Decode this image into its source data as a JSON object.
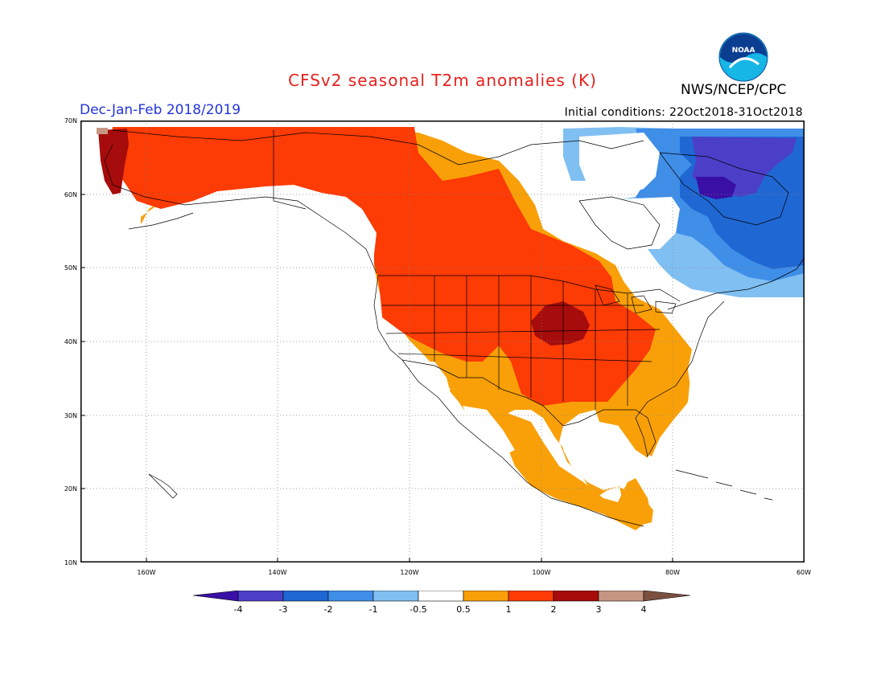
{
  "header": {
    "title": "CFSv2 seasonal T2m anomalies (K)",
    "season": "Dec-Jan-Feb 2018/2019",
    "initial_conditions": "Initial conditions: 22Oct2018-31Oct2018",
    "org": "NWS/NCEP/CPC",
    "logo_text": "NOAA"
  },
  "map": {
    "lat_labels": [
      "70N",
      "60N",
      "50N",
      "40N",
      "30N",
      "20N",
      "10N"
    ],
    "lon_labels": [
      "160W",
      "140W",
      "120W",
      "100W",
      "80W",
      "60W"
    ],
    "extent": {
      "lon": [
        -170,
        -60
      ],
      "lat": [
        10,
        70
      ]
    }
  },
  "legend": {
    "labels": [
      "-4",
      "-3",
      "-2",
      "-1",
      "-0.5",
      "0.5",
      "1",
      "2",
      "3",
      "4"
    ],
    "colors": [
      "#3a0fa5",
      "#4b3fc8",
      "#1f67d3",
      "#3f8ee8",
      "#80bff2",
      "#ffffff",
      "#f9a008",
      "#fc3b05",
      "#a60c0b",
      "#c59783",
      "#7b5040"
    ]
  },
  "colors": {
    "deep_red": "#a60c0b",
    "red": "#fc3b05",
    "orange": "#f9a008",
    "light_blue": "#80bff2",
    "blue": "#3f8ee8",
    "mid_blue": "#1f67d3",
    "purple": "#4b3fc8",
    "tan": "#c59783"
  }
}
